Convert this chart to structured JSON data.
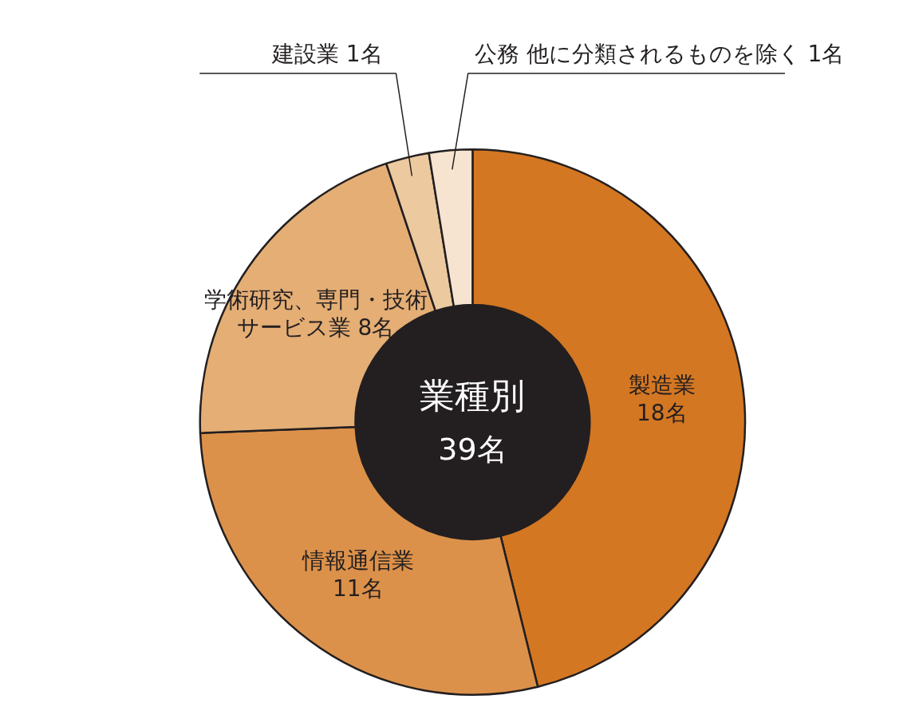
{
  "chart_data": {
    "type": "donut",
    "title": "業種別",
    "categories": [
      "製造業",
      "情報通信業",
      "学術研究、専門・技術サービス業",
      "建設業",
      "公務 他に分類されるものを除く"
    ],
    "values": [
      18,
      11,
      8,
      1,
      1
    ],
    "value_labels": [
      "18名",
      "11名",
      "8名",
      "1名",
      "1名"
    ],
    "colors": [
      "#d47722",
      "#dc914a",
      "#e4ae75",
      "#edc99f",
      "#f6e4d0"
    ],
    "annotations": [
      "39名"
    ]
  }
}
